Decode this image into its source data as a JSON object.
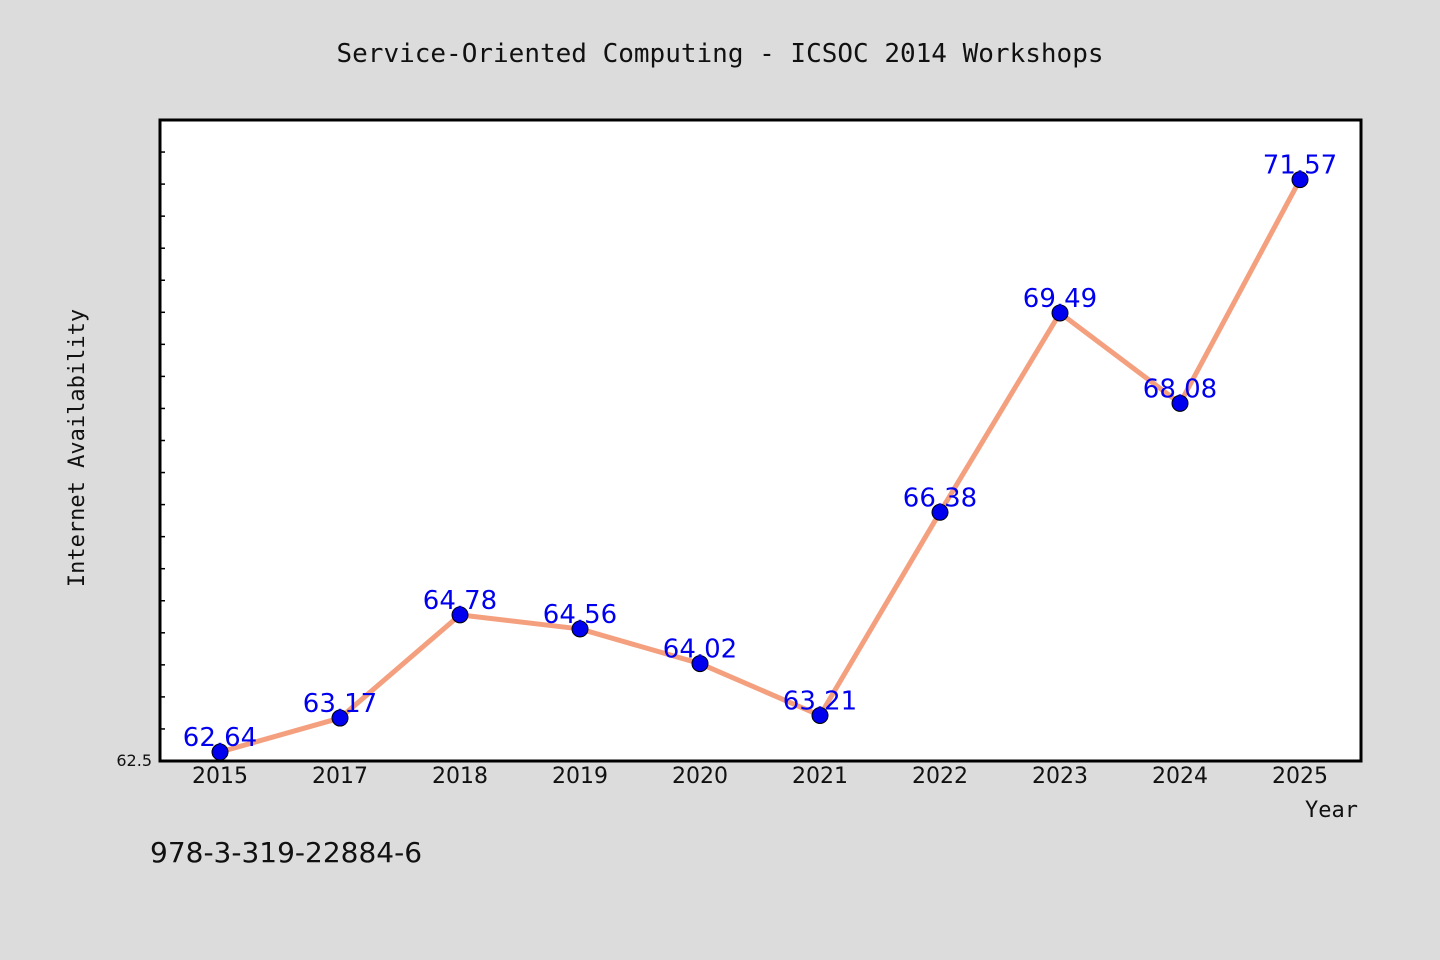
{
  "chart_data": {
    "type": "line",
    "title": "Service-Oriented Computing - ICSOC 2014 Workshops",
    "xlabel": "Year",
    "ylabel": "Internet Availability",
    "categories": [
      "2015",
      "2017",
      "2018",
      "2019",
      "2020",
      "2021",
      "2022",
      "2023",
      "2024",
      "2025"
    ],
    "series": [
      {
        "values": [
          62.64,
          63.17,
          64.78,
          64.56,
          64.02,
          63.21,
          66.38,
          69.49,
          68.08,
          71.57
        ]
      }
    ],
    "data_labels": [
      "62.64",
      "63.17",
      "64.78",
      "64.56",
      "64.02",
      "63.21",
      "66.38",
      "69.49",
      "68.08",
      "71.57"
    ],
    "y_tick_label": "62.5",
    "ylim": [
      62.5,
      72.5
    ],
    "grid": false,
    "legend": "none",
    "line_color": "#f4a07f",
    "marker_color": "#0000ee",
    "label_color": "#0000ee"
  },
  "footer": {
    "isbn": "978-3-319-22884-6"
  }
}
